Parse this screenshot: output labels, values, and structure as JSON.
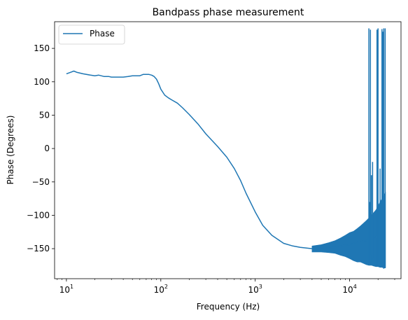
{
  "chart_data": {
    "type": "line",
    "title": "Bandpass phase measurement",
    "xlabel": "Frequency (Hz)",
    "ylabel": "Phase (Degrees)",
    "xscale": "log",
    "xlim": [
      7.5,
      35000
    ],
    "ylim": [
      -195,
      190
    ],
    "yticks": [
      150,
      100,
      50,
      0,
      -50,
      -100,
      -150
    ],
    "xticks": [
      {
        "base": "10",
        "exp": "1",
        "value": 10
      },
      {
        "base": "10",
        "exp": "2",
        "value": 100
      },
      {
        "base": "10",
        "exp": "3",
        "value": 1000
      },
      {
        "base": "10",
        "exp": "4",
        "value": 10000
      }
    ],
    "grid": false,
    "legend_position": "top-left",
    "series": [
      {
        "name": "Phase",
        "color": "#1f77b4",
        "x": [
          10,
          11,
          12,
          13,
          15,
          18,
          20,
          22,
          25,
          28,
          30,
          35,
          40,
          45,
          50,
          55,
          60,
          65,
          70,
          75,
          80,
          85,
          90,
          95,
          100,
          110,
          120,
          130,
          150,
          170,
          200,
          250,
          300,
          400,
          500,
          600,
          700,
          800,
          1000,
          1200,
          1500,
          2000,
          2500,
          3000,
          4000,
          5000,
          6000,
          7000,
          8000,
          10000,
          12000,
          15000,
          18000,
          20000,
          23000
        ],
        "y": [
          112,
          114,
          116,
          114,
          112,
          110,
          109,
          110,
          108,
          108,
          107,
          107,
          107,
          108,
          109,
          109,
          109,
          111,
          111,
          111,
          110,
          108,
          104,
          97,
          89,
          80,
          76,
          73,
          68,
          61,
          51,
          36,
          22,
          3,
          -13,
          -30,
          -48,
          -67,
          -95,
          -115,
          -130,
          -142,
          -146,
          -148,
          -150,
          -150,
          -149,
          -148,
          -146,
          -144,
          -140,
          -138,
          -134,
          -130,
          -128
        ]
      }
    ],
    "noise_band": {
      "x": [
        4000,
        5000,
        6000,
        7000,
        8000,
        9000,
        10000,
        11000,
        12000,
        13000,
        14000,
        15000,
        16000,
        17000,
        18000,
        19000,
        20000,
        21000,
        22000,
        23000,
        24000
      ],
      "y_low": [
        -155,
        -155,
        -156,
        -157,
        -160,
        -162,
        -165,
        -168,
        -170,
        -170,
        -172,
        -174,
        -175,
        -175,
        -176,
        -177,
        -177,
        -178,
        -178,
        -179,
        -179
      ],
      "y_high": [
        -146,
        -144,
        -141,
        -138,
        -134,
        -130,
        -126,
        -124,
        -120,
        -116,
        -112,
        -108,
        -104,
        -100,
        -96,
        -92,
        -86,
        -80,
        -75,
        -70,
        -65
      ]
    },
    "spikes": [
      {
        "x": 16000,
        "y_low": -175,
        "y_high": 180
      },
      {
        "x": 16300,
        "y_low": -172,
        "y_high": -80
      },
      {
        "x": 16600,
        "y_low": -170,
        "y_high": 178
      },
      {
        "x": 17000,
        "y_low": -160,
        "y_high": -40
      },
      {
        "x": 17500,
        "y_low": -165,
        "y_high": -20
      },
      {
        "x": 19500,
        "y_low": -175,
        "y_high": 178
      },
      {
        "x": 20000,
        "y_low": -170,
        "y_high": 180
      },
      {
        "x": 21000,
        "y_low": -172,
        "y_high": -30
      },
      {
        "x": 22000,
        "y_low": -175,
        "y_high": 179
      },
      {
        "x": 22500,
        "y_low": -178,
        "y_high": 175
      },
      {
        "x": 23000,
        "y_low": -180,
        "y_high": 180
      },
      {
        "x": 23800,
        "y_low": -178,
        "y_high": 180
      }
    ]
  }
}
